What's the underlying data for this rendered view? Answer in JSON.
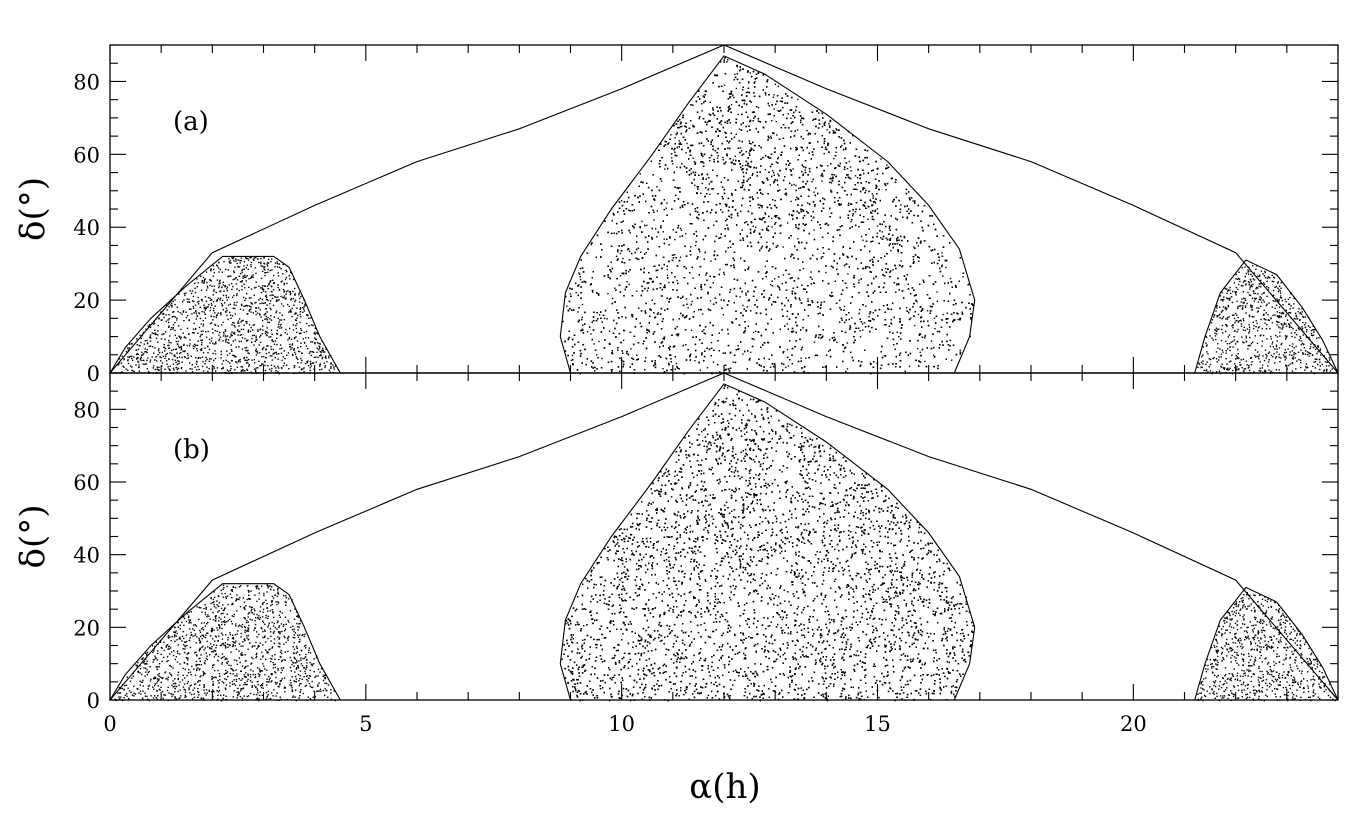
{
  "chart_data": [
    {
      "type": "scatter",
      "panel_label": "(a)",
      "xlabel": "α(h)",
      "ylabel": "δ(°)",
      "xlim": [
        0,
        24
      ],
      "ylim": [
        0,
        90
      ],
      "x_ticks": [
        0,
        5,
        10,
        15,
        20
      ],
      "y_ticks": [
        0,
        20,
        40,
        60,
        80
      ],
      "x_tick_labels_shown": false,
      "legend": "none",
      "grid": false,
      "outer_boundary": [
        [
          0,
          0
        ],
        [
          2,
          33
        ],
        [
          4,
          46
        ],
        [
          6,
          58
        ],
        [
          8,
          67
        ],
        [
          10,
          78
        ],
        [
          12,
          90
        ],
        [
          14,
          78
        ],
        [
          16,
          67
        ],
        [
          18,
          58
        ],
        [
          20,
          46
        ],
        [
          22,
          33
        ],
        [
          24,
          0
        ]
      ],
      "series": [
        {
          "region": "left",
          "boundary": [
            [
              0,
              0
            ],
            [
              0.3,
              7
            ],
            [
              0.8,
              15
            ],
            [
              1.5,
              24
            ],
            [
              2.2,
              32
            ],
            [
              3.2,
              32
            ],
            [
              3.5,
              29
            ],
            [
              3.8,
              20
            ],
            [
              4.1,
              10
            ],
            [
              4.5,
              0
            ]
          ],
          "density": "moderate"
        },
        {
          "region": "center",
          "boundary": [
            [
              9.0,
              0
            ],
            [
              8.8,
              10
            ],
            [
              8.9,
              22
            ],
            [
              9.2,
              32
            ],
            [
              9.8,
              45
            ],
            [
              10.6,
              60
            ],
            [
              11.3,
              74
            ],
            [
              12.0,
              87
            ],
            [
              12.8,
              82
            ],
            [
              14.0,
              71
            ],
            [
              15.2,
              58
            ],
            [
              16.0,
              46
            ],
            [
              16.6,
              34
            ],
            [
              16.9,
              20
            ],
            [
              16.8,
              10
            ],
            [
              16.5,
              0
            ]
          ],
          "density": "high, densest near α 13–15 h, δ 50–80°"
        },
        {
          "region": "right",
          "boundary": [
            [
              21.2,
              0
            ],
            [
              21.4,
              10
            ],
            [
              21.7,
              22
            ],
            [
              22.2,
              31
            ],
            [
              22.8,
              27
            ],
            [
              23.3,
              18
            ],
            [
              23.7,
              9
            ],
            [
              24.0,
              0
            ]
          ],
          "density": "moderate"
        }
      ]
    },
    {
      "type": "scatter",
      "panel_label": "(b)",
      "xlabel": "α(h)",
      "ylabel": "δ(°)",
      "xlim": [
        0,
        24
      ],
      "ylim": [
        0,
        90
      ],
      "x_ticks": [
        0,
        5,
        10,
        15,
        20
      ],
      "x_tick_labels": [
        "0",
        "5",
        "10",
        "15",
        "20"
      ],
      "y_ticks": [
        0,
        20,
        40,
        60,
        80
      ],
      "legend": "none",
      "grid": false,
      "outer_boundary": [
        [
          0,
          0
        ],
        [
          2,
          33
        ],
        [
          4,
          46
        ],
        [
          6,
          58
        ],
        [
          8,
          67
        ],
        [
          10,
          78
        ],
        [
          12,
          90
        ],
        [
          14,
          78
        ],
        [
          16,
          67
        ],
        [
          18,
          58
        ],
        [
          20,
          46
        ],
        [
          22,
          33
        ],
        [
          24,
          0
        ]
      ],
      "series": [
        {
          "region": "left",
          "boundary": [
            [
              0,
              0
            ],
            [
              0.3,
              7
            ],
            [
              0.8,
              15
            ],
            [
              1.5,
              24
            ],
            [
              2.2,
              32
            ],
            [
              3.2,
              32
            ],
            [
              3.5,
              29
            ],
            [
              3.8,
              20
            ],
            [
              4.1,
              10
            ],
            [
              4.5,
              0
            ]
          ],
          "density": "moderate"
        },
        {
          "region": "center",
          "boundary": [
            [
              9.0,
              0
            ],
            [
              8.8,
              10
            ],
            [
              8.9,
              22
            ],
            [
              9.2,
              32
            ],
            [
              9.8,
              45
            ],
            [
              10.6,
              60
            ],
            [
              11.3,
              74
            ],
            [
              12.0,
              87
            ],
            [
              12.8,
              82
            ],
            [
              14.0,
              71
            ],
            [
              15.2,
              58
            ],
            [
              16.0,
              46
            ],
            [
              16.6,
              34
            ],
            [
              16.9,
              20
            ],
            [
              16.8,
              10
            ],
            [
              16.5,
              0
            ]
          ],
          "density": "uniform"
        },
        {
          "region": "right",
          "boundary": [
            [
              21.2,
              0
            ],
            [
              21.4,
              10
            ],
            [
              21.7,
              22
            ],
            [
              22.2,
              31
            ],
            [
              22.8,
              27
            ],
            [
              23.3,
              18
            ],
            [
              23.7,
              9
            ],
            [
              24.0,
              0
            ]
          ],
          "density": "moderate"
        }
      ]
    }
  ]
}
